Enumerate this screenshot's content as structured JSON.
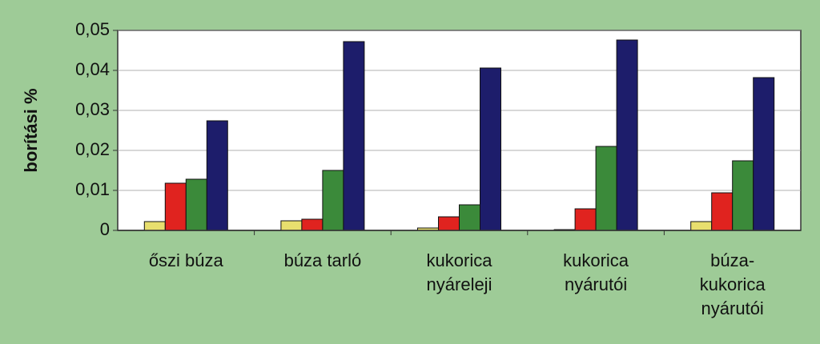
{
  "chart_data": {
    "type": "bar",
    "y_label": "borítási %",
    "categories": [
      [
        "őszi búza"
      ],
      [
        "búza tarló"
      ],
      [
        "kukorica",
        "nyáreleji"
      ],
      [
        "kukorica",
        "nyárutói"
      ],
      [
        "búza-",
        "kukorica",
        "nyárutói"
      ]
    ],
    "series": [
      {
        "color": "#e8df6e",
        "values": [
          0.0022,
          0.0024,
          0.0006,
          0.0002,
          0.0022
        ]
      },
      {
        "color": "#e0231f",
        "values": [
          0.0118,
          0.0028,
          0.0034,
          0.0054,
          0.0094
        ]
      },
      {
        "color": "#3b8a3a",
        "values": [
          0.0128,
          0.015,
          0.0064,
          0.021,
          0.0174
        ]
      },
      {
        "color": "#1d1d6b",
        "values": [
          0.0274,
          0.0472,
          0.0406,
          0.0476,
          0.0382
        ]
      }
    ],
    "ylim": [
      0,
      0.05
    ],
    "yticks": [
      0,
      {
        "value": 0.01,
        "label": "0,01"
      },
      {
        "value": 0.02,
        "label": "0,02"
      },
      {
        "value": 0.03,
        "label": "0,03"
      },
      {
        "value": 0.04,
        "label": "0,04"
      },
      {
        "value": 0.05,
        "label": "0,05"
      }
    ],
    "grid": true
  }
}
